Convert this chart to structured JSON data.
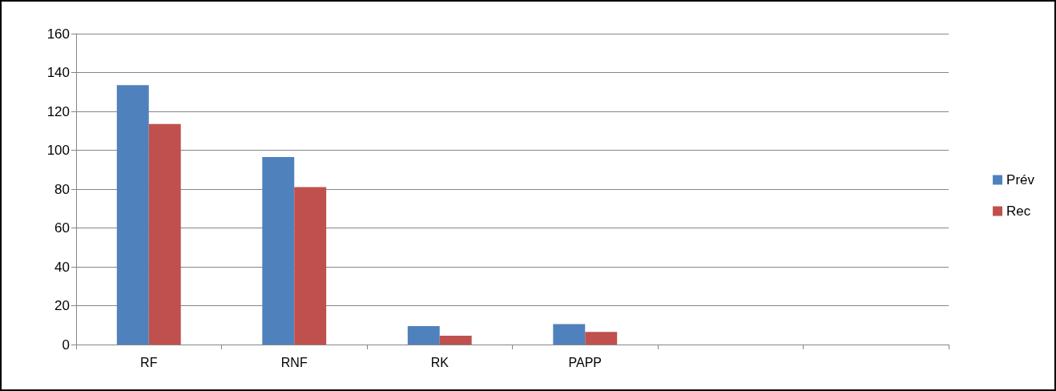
{
  "chart_data": {
    "type": "bar",
    "categories": [
      "RF",
      "RNF",
      "RK",
      "PAPP",
      null,
      null
    ],
    "series": [
      {
        "name": "Prév",
        "color": "#4f81bd",
        "values": [
          133.5,
          96.5,
          9.5,
          10.5,
          null,
          null
        ]
      },
      {
        "name": "Rec",
        "color": "#c0504d",
        "values": [
          113.5,
          81,
          4.5,
          6.5,
          null,
          null
        ]
      }
    ],
    "ylim": [
      0,
      160
    ],
    "yticks": [
      0,
      20,
      40,
      60,
      80,
      100,
      120,
      140,
      160
    ],
    "grid": "y",
    "legend": "right"
  }
}
